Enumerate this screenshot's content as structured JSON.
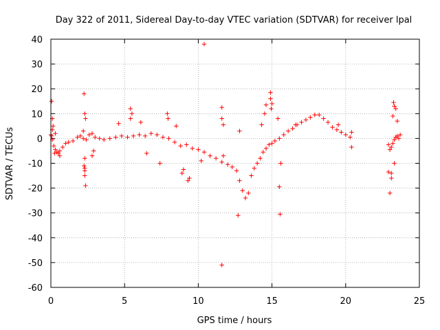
{
  "chart_data": {
    "type": "scatter",
    "title": "Day 322 of 2011, Sidereal Day-to-day VTEC variation (SDTVAR) for receiver lpal",
    "xlabel": "GPS time / hours",
    "ylabel": "SDTVAR / TECUs",
    "xlim": [
      0,
      25
    ],
    "ylim": [
      -60,
      40
    ],
    "x_ticks": [
      0,
      5,
      10,
      15,
      20,
      25
    ],
    "y_ticks": [
      40,
      30,
      20,
      10,
      0,
      -10,
      -20,
      -30,
      -40,
      -50,
      -60
    ],
    "x_tick_labels": [
      "0",
      "5",
      "10",
      "15",
      "20",
      "25"
    ],
    "y_tick_labels": [
      "40",
      "30",
      "20",
      "10",
      "0",
      "-10",
      "-20",
      "-30",
      "-40",
      "-50",
      "-60"
    ],
    "grid": true,
    "marker": "+",
    "color": "#ff0000",
    "series": [
      {
        "name": "SDTVAR",
        "x": [
          0.0,
          0.05,
          0.1,
          0.2,
          0.3,
          0.4,
          0.5,
          0.6,
          0.8,
          1.0,
          1.2,
          1.5,
          1.8,
          2.0,
          2.2,
          2.4,
          2.6,
          2.8,
          3.0,
          3.3,
          3.6,
          4.0,
          4.4,
          4.8,
          5.2,
          5.6,
          6.0,
          6.4,
          6.8,
          7.2,
          7.6,
          8.0,
          8.4,
          8.8,
          9.2,
          9.6,
          10.0,
          10.4,
          10.8,
          11.2,
          11.6,
          12.0,
          12.3,
          12.6,
          12.8,
          13.0,
          13.2,
          13.4,
          13.6,
          13.8,
          14.0,
          14.2,
          14.4,
          14.6,
          14.8,
          15.0,
          15.2,
          15.5,
          15.8,
          16.1,
          16.4,
          16.7,
          17.0,
          17.3,
          17.6,
          17.9,
          18.2,
          18.5,
          18.8,
          19.1,
          19.4,
          19.7,
          20.0,
          20.3,
          22.9,
          23.0,
          23.1,
          23.2,
          23.3,
          23.4,
          23.5,
          23.6,
          23.7,
          0.05,
          0.1,
          0.15,
          0.1,
          0.3,
          0.25,
          0.6,
          2.25,
          2.3,
          2.35,
          2.3,
          2.25,
          2.3,
          2.3,
          2.35,
          2.2,
          2.9,
          2.8,
          2.3,
          4.6,
          5.4,
          5.5,
          5.4,
          6.1,
          6.5,
          7.4,
          7.9,
          7.95,
          8.5,
          8.9,
          9.0,
          9.3,
          9.4,
          10.4,
          10.2,
          11.6,
          11.6,
          11.6,
          11.7,
          11.7,
          12.7,
          12.8,
          14.3,
          14.5,
          14.6,
          14.9,
          14.9,
          15.0,
          14.95,
          15.4,
          15.5,
          15.55,
          15.6,
          16.6,
          19.5,
          20.4,
          20.4,
          22.9,
          23.0,
          23.1,
          23.2,
          23.25,
          23.3,
          23.4,
          23.5,
          23.1,
          23.3
        ],
        "y": [
          1.5,
          1.0,
          -0.5,
          -3.0,
          -4.5,
          -5.5,
          -6.0,
          -5.0,
          -3.5,
          -2.0,
          -1.5,
          -1.0,
          0.5,
          1.0,
          0.0,
          -0.5,
          1.5,
          2.0,
          0.5,
          0.0,
          -0.5,
          0.0,
          0.5,
          1.0,
          0.5,
          1.0,
          1.5,
          1.0,
          2.0,
          1.5,
          0.5,
          0.0,
          -1.5,
          -3.0,
          -2.5,
          -4.0,
          -4.5,
          -5.5,
          -7.0,
          -8.0,
          -9.5,
          -10.5,
          -11.5,
          -13.0,
          -17.0,
          -21.0,
          -24.0,
          -22.0,
          -15.0,
          -12.0,
          -10.0,
          -8.0,
          -5.5,
          -4.0,
          -2.5,
          -2.0,
          -1.0,
          0.0,
          1.5,
          3.0,
          4.0,
          5.5,
          6.5,
          7.5,
          8.5,
          9.5,
          9.5,
          8.0,
          6.5,
          4.5,
          3.5,
          2.5,
          1.5,
          0.5,
          -2.5,
          -4.5,
          -3.5,
          -2.0,
          -0.5,
          0.5,
          1.0,
          0.0,
          1.5,
          15.0,
          8.0,
          5.0,
          3.5,
          2.0,
          -6.0,
          -7.0,
          18.0,
          10.0,
          8.0,
          -8.0,
          -11.0,
          -13.0,
          -15.0,
          -19.0,
          3.0,
          -5.0,
          -7.0,
          -12.0,
          6.0,
          12.0,
          10.0,
          8.0,
          6.5,
          -6.0,
          -10.0,
          10.0,
          8.0,
          5.0,
          -14.0,
          -12.5,
          -17.0,
          -16.0,
          38.0,
          -9.0,
          12.5,
          8.0,
          -51.0,
          5.5,
          -7.0,
          -31.0,
          3.0,
          5.5,
          10.0,
          13.5,
          16.0,
          18.5,
          14.0,
          12.0,
          8.0,
          -19.5,
          -30.5,
          -10.0,
          5.5,
          5.5,
          2.5,
          -3.5,
          -13.5,
          -22.0,
          -16.0,
          9.0,
          14.5,
          13.0,
          12.0,
          7.0,
          -14.0,
          -10.0
        ]
      }
    ]
  }
}
